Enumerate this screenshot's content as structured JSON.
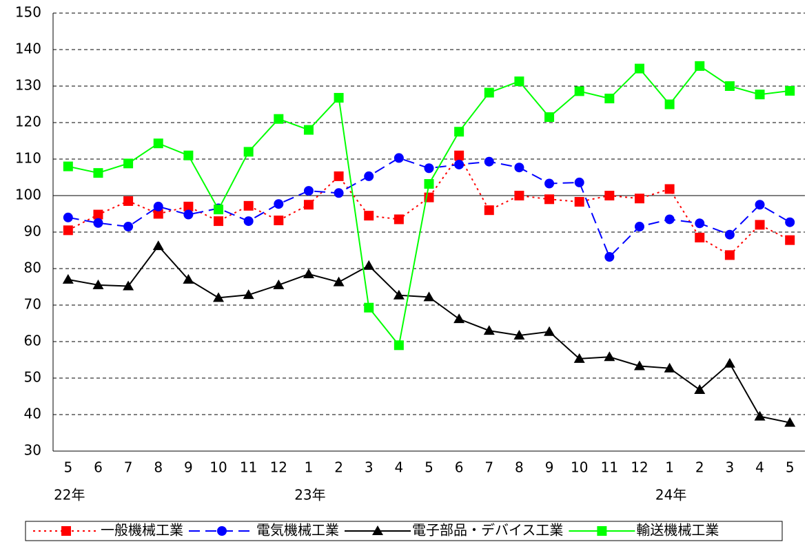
{
  "chart_data": {
    "type": "line",
    "categories": [
      "5",
      "6",
      "7",
      "8",
      "9",
      "10",
      "11",
      "12",
      "1",
      "2",
      "3",
      "4",
      "5",
      "6",
      "7",
      "8",
      "9",
      "10",
      "11",
      "12",
      "1",
      "2",
      "3",
      "4",
      "5"
    ],
    "year_labels": [
      "22年",
      null,
      null,
      null,
      null,
      null,
      null,
      null,
      "23年",
      null,
      null,
      null,
      null,
      null,
      null,
      null,
      null,
      null,
      null,
      null,
      "24年",
      null,
      null,
      null,
      null
    ],
    "ylim": [
      30,
      150
    ],
    "yticks": [
      30,
      40,
      50,
      60,
      70,
      80,
      90,
      100,
      110,
      120,
      130,
      140,
      150
    ],
    "grid": true,
    "baseline": 100,
    "legend": "bottom",
    "series": [
      {
        "name": "一般機械工業",
        "color": "#ff0000",
        "marker": "square",
        "dash": "dotted",
        "values": [
          90.5,
          94.8,
          98.5,
          95,
          97,
          93,
          97.2,
          93.2,
          97.5,
          105.3,
          94.5,
          93.5,
          99.5,
          111,
          96,
          100,
          99,
          98.3,
          100,
          99.2,
          101.8,
          88.5,
          83.7,
          92,
          87.8
        ]
      },
      {
        "name": "電気機械工業",
        "color": "#0000ff",
        "marker": "circle",
        "dash": "dashed",
        "values": [
          94,
          92.5,
          91.5,
          97,
          94.8,
          96.5,
          93,
          97.7,
          101.3,
          100.7,
          105.3,
          110.3,
          107.5,
          108.5,
          109.3,
          107.7,
          103.3,
          103.6,
          83.2,
          91.5,
          93.5,
          92.4,
          89.3,
          97.5,
          92.7
        ]
      },
      {
        "name": "電子部品・デバイス工業",
        "color": "#000000",
        "marker": "triangle",
        "dash": "solid",
        "values": [
          77,
          75.5,
          75.2,
          86.2,
          77,
          72,
          72.8,
          75.5,
          78.5,
          76.3,
          80.8,
          72.7,
          72.2,
          66.2,
          63,
          61.7,
          62.7,
          55.3,
          55.8,
          53.3,
          52.7,
          46.8,
          54,
          39.5,
          37.8
        ]
      },
      {
        "name": "輸送機械工業",
        "color": "#00ff00",
        "marker": "square",
        "dash": "solid",
        "values": [
          108,
          106.2,
          108.8,
          114.3,
          111,
          96.2,
          112,
          121,
          118,
          126.8,
          69.3,
          59,
          103.2,
          117.5,
          128.2,
          131.3,
          121.5,
          128.6,
          126.6,
          134.8,
          125,
          135.5,
          130,
          127.7,
          128.7
        ]
      }
    ]
  }
}
